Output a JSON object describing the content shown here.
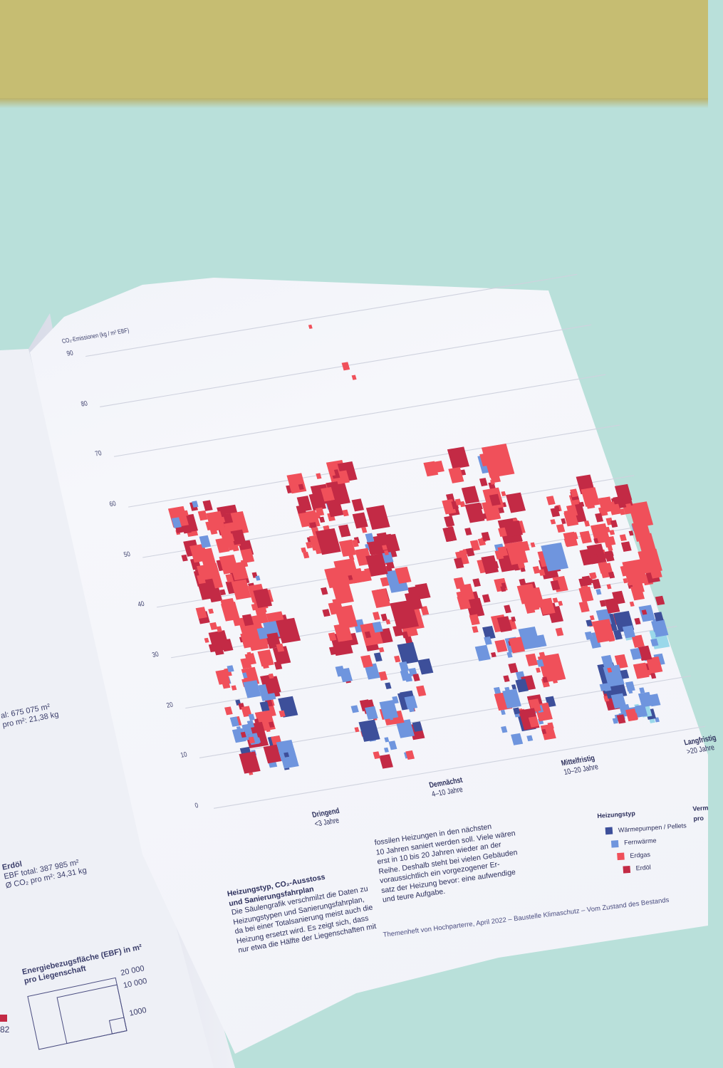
{
  "left_page": {
    "total_line1": "al: 675 075 m²",
    "total_line2": "pro m²: 21,38 kg",
    "erdoel_title": "Erdöl",
    "erdoel_ebf": "EBF total: 387 985 m²",
    "erdoel_co2": "Ø CO₂ pro m²: 34,31 kg",
    "size_legend_title1": "Energiebezugsfläche (EBF) in m²",
    "size_legend_title2": "pro Liegenschaft",
    "size_legend_values": [
      "20 000",
      "10 000",
      "1000"
    ],
    "partial_number": "82"
  },
  "chart": {
    "axis_title": "CO₂-Emissionen (kg / m² EBF)",
    "y_ticks": [
      "90",
      "80",
      "70",
      "60",
      "50",
      "40",
      "30",
      "20",
      "10",
      "0"
    ],
    "columns": [
      {
        "label": "Dringend",
        "sub": "<3 Jahre"
      },
      {
        "label": "Demnächst",
        "sub": "4–10 Jahre"
      },
      {
        "label": "Mittelfristig",
        "sub": "10–20 Jahre"
      },
      {
        "label": "Langfristig",
        "sub": ">20 Jahre"
      }
    ],
    "colors": {
      "waermepumpen": "#3d4f9a",
      "fernwaerme": "#6f95de",
      "erdgas": "#f0505a",
      "erdoel": "#c32a45",
      "light": "#9ad8ea"
    }
  },
  "text": {
    "heading1": "Heizungstyp, CO₂-Ausstoss",
    "heading2": "und Sanierungsfahrplan",
    "col1": [
      "Die Säulengrafik verschmilzt die Daten zu",
      "Heizungstypen und Sanierungsfahrplan,",
      "da bei einer Totalsanierung meist auch die",
      "Heizung ersetzt wird. Es zeigt sich, dass",
      "nur etwa die Hälfte der Liegenschaften mit"
    ],
    "col2": [
      "fossilen Heizungen in den nächsten",
      "10 Jahren saniert werden soll. Viele wären",
      "erst in 10 bis 20 Jahren wieder an der",
      "Reihe. Deshalb steht bei vielen Gebäuden",
      "voraussichtlich ein vorgezogener Er-",
      "satz der Heizung bevor: eine aufwendige",
      "und teure Aufgabe."
    ]
  },
  "legend": {
    "title": "Heizungstyp",
    "items": [
      "Wärmepumpen / Pellets",
      "Fernwärme",
      "Erdgas",
      "Erdöl"
    ],
    "partial_title": "Verm",
    "partial_sub": "pro"
  },
  "footer": {
    "source": "Themenheft von Hochparterre, April 2022",
    "sep": "–",
    "section": "Baustelle Klimaschutz",
    "chapter": "Vom Zustand des Bestands"
  }
}
